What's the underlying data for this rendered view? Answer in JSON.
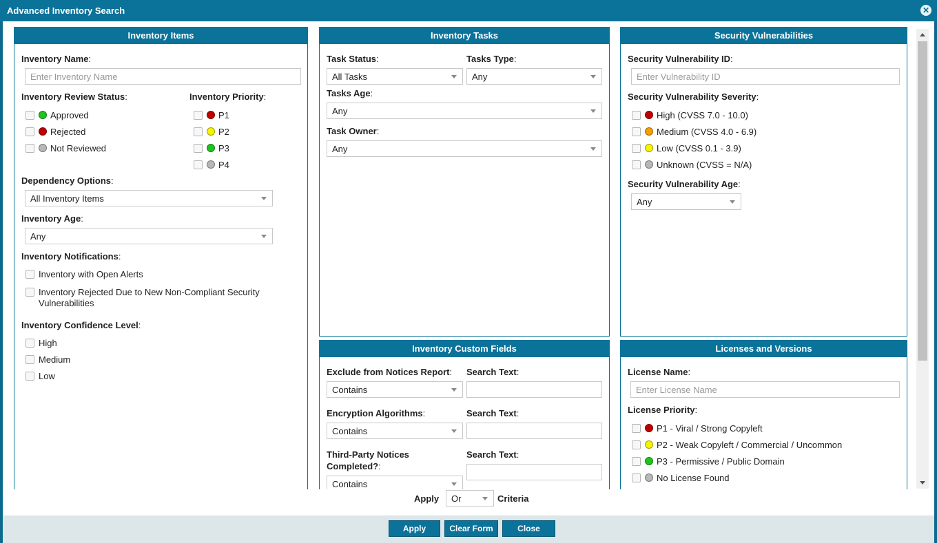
{
  "dialog": {
    "title": "Advanced Inventory Search"
  },
  "colors": {
    "accent": "#0b7299",
    "red": "#c00000",
    "yellow": "#f5f500",
    "green": "#1ec31e",
    "gray": "#b8b8b8",
    "orange": "#f5a000"
  },
  "inventory_items": {
    "header": "Inventory Items",
    "name_label": "Inventory Name",
    "name_placeholder": "Enter Inventory Name",
    "review_status_label": "Inventory Review Status",
    "review_status": [
      {
        "label": "Approved",
        "color": "#1ec31e"
      },
      {
        "label": "Rejected",
        "color": "#c00000"
      },
      {
        "label": "Not Reviewed",
        "color": "#b8b8b8"
      }
    ],
    "priority_label": "Inventory Priority",
    "priorities": [
      {
        "label": "P1",
        "color": "#c00000"
      },
      {
        "label": "P2",
        "color": "#f5f500"
      },
      {
        "label": "P3",
        "color": "#1ec31e"
      },
      {
        "label": "P4",
        "color": "#b8b8b8"
      }
    ],
    "dependency_label": "Dependency Options",
    "dependency_value": "All Inventory Items",
    "age_label": "Inventory Age",
    "age_value": "Any",
    "notifications_label": "Inventory Notifications",
    "notifications": [
      "Inventory with Open Alerts",
      "Inventory Rejected Due to New Non-Compliant Security",
      "Vulnerabilities"
    ],
    "confidence_label": "Inventory Confidence Level",
    "confidence_levels": [
      "High",
      "Medium",
      "Low"
    ]
  },
  "inventory_tasks": {
    "header": "Inventory Tasks",
    "status_label": "Task Status",
    "status_value": "All Tasks",
    "type_label": "Tasks Type",
    "type_value": "Any",
    "age_label": "Tasks Age",
    "age_value": "Any",
    "owner_label": "Task Owner",
    "owner_value": "Any"
  },
  "security": {
    "header": "Security Vulnerabilities",
    "id_label": "Security Vulnerability ID",
    "id_placeholder": "Enter Vulnerability ID",
    "severity_label": "Security Vulnerability Severity",
    "severities": [
      {
        "label": "High (CVSS 7.0 - 10.0)",
        "color": "#c00000"
      },
      {
        "label": "Medium (CVSS 4.0 - 6.9)",
        "color": "#f5a000"
      },
      {
        "label": "Low (CVSS 0.1 - 3.9)",
        "color": "#f5f500"
      },
      {
        "label": "Unknown (CVSS = N/A)",
        "color": "#b8b8b8"
      }
    ],
    "age_label": "Security Vulnerability Age",
    "age_value": "Any"
  },
  "custom_fields": {
    "header": "Inventory Custom Fields",
    "search_text_label": "Search Text",
    "fields": [
      {
        "label": "Exclude from Notices Report",
        "value": "Contains"
      },
      {
        "label": "Encryption Algorithms",
        "value": "Contains"
      },
      {
        "label_line1": "Third-Party Notices",
        "label_line2": "Completed?",
        "value": "Contains"
      }
    ]
  },
  "licenses": {
    "header": "Licenses and Versions",
    "name_label": "License Name",
    "name_placeholder": "Enter License Name",
    "priority_label": "License Priority",
    "priorities": [
      {
        "label": "P1 - Viral / Strong Copyleft",
        "color": "#c00000"
      },
      {
        "label": "P2 - Weak Copyleft / Commercial / Uncommon",
        "color": "#f5f500"
      },
      {
        "label": "P3 - Permissive / Public Domain",
        "color": "#1ec31e"
      },
      {
        "label": "No License Found",
        "color": "#b8b8b8"
      }
    ]
  },
  "criteria": {
    "apply_label": "Apply",
    "value": "Or",
    "criteria_label": "Criteria"
  },
  "footer": {
    "apply": "Apply",
    "clear": "Clear Form",
    "close": "Close"
  },
  "colon": ":"
}
